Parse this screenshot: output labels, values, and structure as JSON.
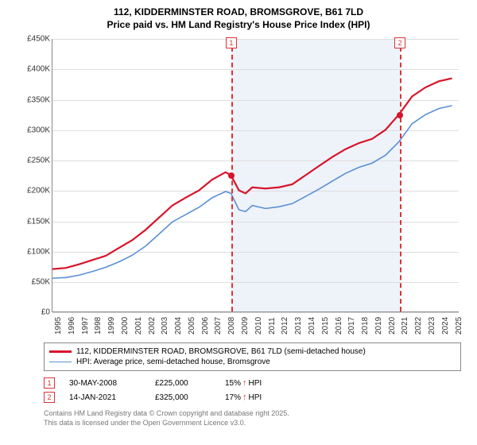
{
  "title": {
    "line1": "112, KIDDERMINSTER ROAD, BROMSGROVE, B61 7LD",
    "line2": "Price paid vs. HM Land Registry's House Price Index (HPI)"
  },
  "chart": {
    "type": "line",
    "background_color": "#ffffff",
    "grid_color": "#dddddd",
    "axis_color": "#888888",
    "xlim": [
      1995,
      2025.5
    ],
    "ylim": [
      0,
      450000
    ],
    "ytick_step": 50000,
    "ytick_prefix": "£",
    "ytick_labels": [
      "£0",
      "£50K",
      "£100K",
      "£150K",
      "£200K",
      "£250K",
      "£300K",
      "£350K",
      "£400K",
      "£450K"
    ],
    "xtick_labels": [
      "1995",
      "1996",
      "1997",
      "1998",
      "1999",
      "2000",
      "2001",
      "2002",
      "2003",
      "2004",
      "2005",
      "2006",
      "2007",
      "2008",
      "2009",
      "2010",
      "2011",
      "2012",
      "2013",
      "2014",
      "2015",
      "2016",
      "2017",
      "2018",
      "2019",
      "2020",
      "2021",
      "2022",
      "2023",
      "2024",
      "2025"
    ],
    "shade_band": {
      "from": 2008.4,
      "to": 2021.04,
      "color": "#eef3fa"
    },
    "series": [
      {
        "name": "112, KIDDERMINSTER ROAD, BROMSGROVE, B61 7LD (semi-detached house)",
        "color": "#d6142a",
        "line_width": 2.2,
        "data": [
          [
            1995,
            70000
          ],
          [
            1996,
            72000
          ],
          [
            1997,
            78000
          ],
          [
            1998,
            85000
          ],
          [
            1999,
            92000
          ],
          [
            2000,
            105000
          ],
          [
            2001,
            118000
          ],
          [
            2002,
            135000
          ],
          [
            2003,
            155000
          ],
          [
            2004,
            175000
          ],
          [
            2005,
            188000
          ],
          [
            2006,
            200000
          ],
          [
            2007,
            218000
          ],
          [
            2008,
            230000
          ],
          [
            2008.4,
            225000
          ],
          [
            2009,
            200000
          ],
          [
            2009.5,
            195000
          ],
          [
            2010,
            205000
          ],
          [
            2011,
            203000
          ],
          [
            2012,
            205000
          ],
          [
            2013,
            210000
          ],
          [
            2014,
            225000
          ],
          [
            2015,
            240000
          ],
          [
            2016,
            255000
          ],
          [
            2017,
            268000
          ],
          [
            2018,
            278000
          ],
          [
            2019,
            285000
          ],
          [
            2020,
            300000
          ],
          [
            2021,
            325000
          ],
          [
            2022,
            355000
          ],
          [
            2023,
            370000
          ],
          [
            2024,
            380000
          ],
          [
            2025,
            385000
          ]
        ]
      },
      {
        "name": "HPI: Average price, semi-detached house, Bromsgrove",
        "color": "#5a8fd6",
        "line_width": 1.6,
        "data": [
          [
            1995,
            55000
          ],
          [
            1996,
            56000
          ],
          [
            1997,
            60000
          ],
          [
            1998,
            66000
          ],
          [
            1999,
            73000
          ],
          [
            2000,
            82000
          ],
          [
            2001,
            93000
          ],
          [
            2002,
            108000
          ],
          [
            2003,
            128000
          ],
          [
            2004,
            148000
          ],
          [
            2005,
            160000
          ],
          [
            2006,
            172000
          ],
          [
            2007,
            188000
          ],
          [
            2008,
            198000
          ],
          [
            2008.4,
            195000
          ],
          [
            2009,
            168000
          ],
          [
            2009.5,
            165000
          ],
          [
            2010,
            175000
          ],
          [
            2011,
            170000
          ],
          [
            2012,
            173000
          ],
          [
            2013,
            178000
          ],
          [
            2014,
            190000
          ],
          [
            2015,
            202000
          ],
          [
            2016,
            215000
          ],
          [
            2017,
            228000
          ],
          [
            2018,
            238000
          ],
          [
            2019,
            245000
          ],
          [
            2020,
            258000
          ],
          [
            2021,
            280000
          ],
          [
            2022,
            310000
          ],
          [
            2023,
            325000
          ],
          [
            2024,
            335000
          ],
          [
            2025,
            340000
          ]
        ]
      }
    ],
    "markers": [
      {
        "idx": "1",
        "x": 2008.4,
        "y": 225000,
        "line_color": "#d33",
        "dot_color": "#d6142a"
      },
      {
        "idx": "2",
        "x": 2021.04,
        "y": 325000,
        "line_color": "#d33",
        "dot_color": "#d6142a"
      }
    ]
  },
  "legend": {
    "items": [
      {
        "label": "112, KIDDERMINSTER ROAD, BROMSGROVE, B61 7LD (semi-detached house)",
        "color": "#d6142a",
        "weight": 2.5
      },
      {
        "label": "HPI: Average price, semi-detached house, Bromsgrove",
        "color": "#5a8fd6",
        "weight": 1.6
      }
    ]
  },
  "transactions": [
    {
      "idx": "1",
      "date": "30-MAY-2008",
      "price": "£225,000",
      "hpi_delta": "15%",
      "hpi_dir": "↑",
      "hpi_suffix": "HPI"
    },
    {
      "idx": "2",
      "date": "14-JAN-2021",
      "price": "£325,000",
      "hpi_delta": "17%",
      "hpi_dir": "↑",
      "hpi_suffix": "HPI"
    }
  ],
  "footer": {
    "line1": "Contains HM Land Registry data © Crown copyright and database right 2025.",
    "line2": "This data is licensed under the Open Government Licence v3.0."
  }
}
